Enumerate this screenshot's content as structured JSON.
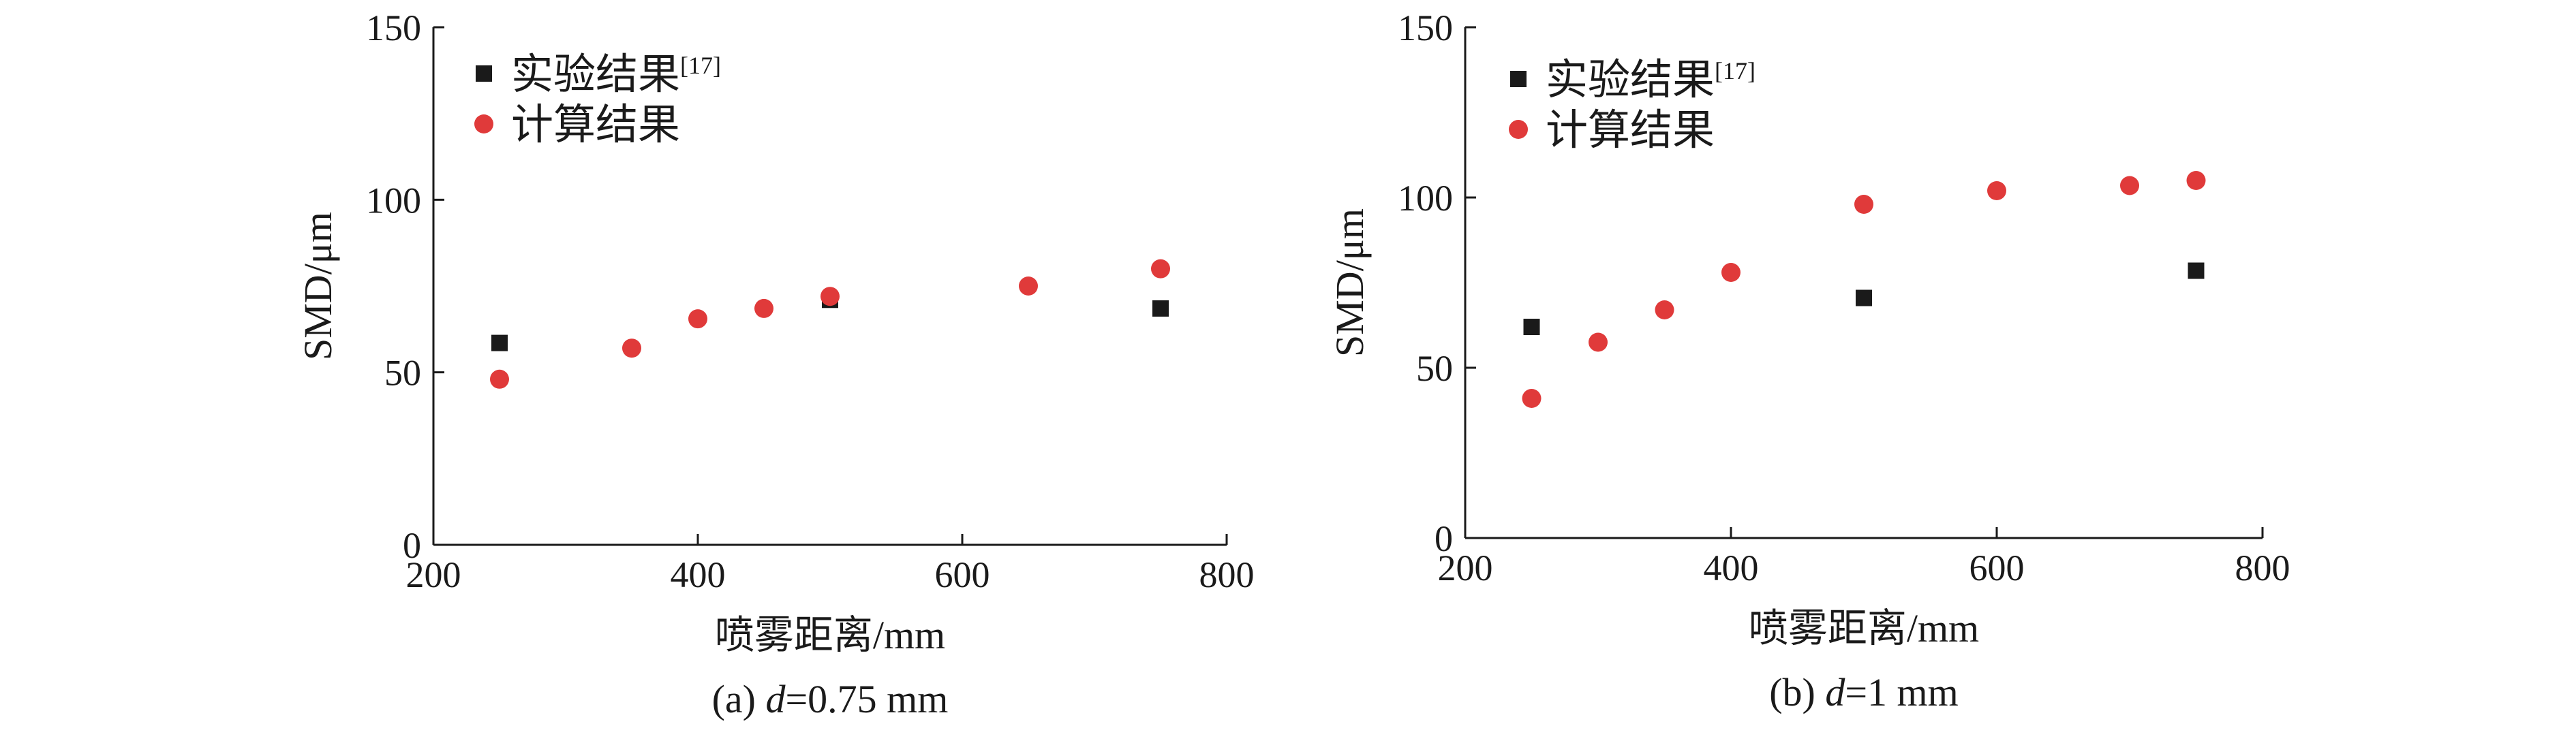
{
  "chart_data": [
    {
      "type": "scatter",
      "caption_prefix": "(a) ",
      "caption_var": "d",
      "caption_suffix": "=0.75 mm",
      "xlabel": "喷雾距离/mm",
      "ylabel": "SMD/μm",
      "xlim": [
        200,
        800
      ],
      "ylim": [
        0,
        150
      ],
      "xticks": [
        "200",
        "400",
        "600",
        "800"
      ],
      "yticks": [
        "0",
        "50",
        "100",
        "150"
      ],
      "grid": false,
      "legend_position": "top-left",
      "series": [
        {
          "name": "实验结果",
          "name_sup": "[17]",
          "marker": "square",
          "color": "#1a1a1a",
          "x": [
            250,
            500,
            750
          ],
          "y": [
            58.5,
            71,
            68.5
          ]
        },
        {
          "name": "计算结果",
          "marker": "circle",
          "color": "#e03a3a",
          "x": [
            250,
            350,
            400,
            450,
            500,
            650,
            750
          ],
          "y": [
            48,
            57,
            65.5,
            68.5,
            72,
            75,
            80
          ]
        }
      ]
    },
    {
      "type": "scatter",
      "caption_prefix": "(b) ",
      "caption_var": "d",
      "caption_suffix": "=1 mm",
      "xlabel": "喷雾距离/mm",
      "ylabel": "SMD/μm",
      "xlim": [
        200,
        800
      ],
      "ylim": [
        0,
        150
      ],
      "xticks": [
        "200",
        "400",
        "600",
        "800"
      ],
      "yticks": [
        "0",
        "50",
        "100",
        "150"
      ],
      "grid": false,
      "legend_position": "top-left",
      "series": [
        {
          "name": "实验结果",
          "name_sup": "[17]",
          "marker": "square",
          "color": "#1a1a1a",
          "x": [
            250,
            500,
            750
          ],
          "y": [
            62,
            70.5,
            78.5
          ]
        },
        {
          "name": "计算结果",
          "marker": "circle",
          "color": "#e03a3a",
          "x": [
            250,
            300,
            350,
            400,
            500,
            600,
            700,
            750
          ],
          "y": [
            41,
            57.5,
            67,
            78,
            98,
            102,
            103.5,
            105
          ]
        }
      ]
    }
  ]
}
